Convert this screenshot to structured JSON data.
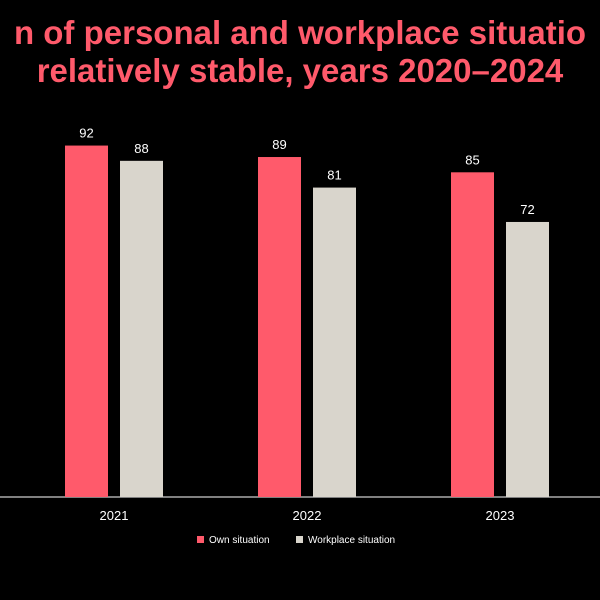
{
  "chart_data": {
    "type": "bar",
    "title": "n of personal and workplace situatio",
    "subtitle": "relatively stable, years 2020–2024",
    "categories": [
      "2021",
      "2022",
      "2023"
    ],
    "series": [
      {
        "name": "Own situation",
        "values": [
          92,
          89,
          85
        ],
        "color": "#ff5a6b"
      },
      {
        "name": "Workplace situation",
        "values": [
          88,
          81,
          72
        ],
        "color": "#d9d5cc"
      }
    ],
    "ylim": [
      0,
      100
    ],
    "grid": false,
    "legend_position": "bottom-center"
  },
  "colors": {
    "background": "#000000",
    "title": "#ff5a6b",
    "text": "#ffffff",
    "axis": "#ffffff"
  }
}
